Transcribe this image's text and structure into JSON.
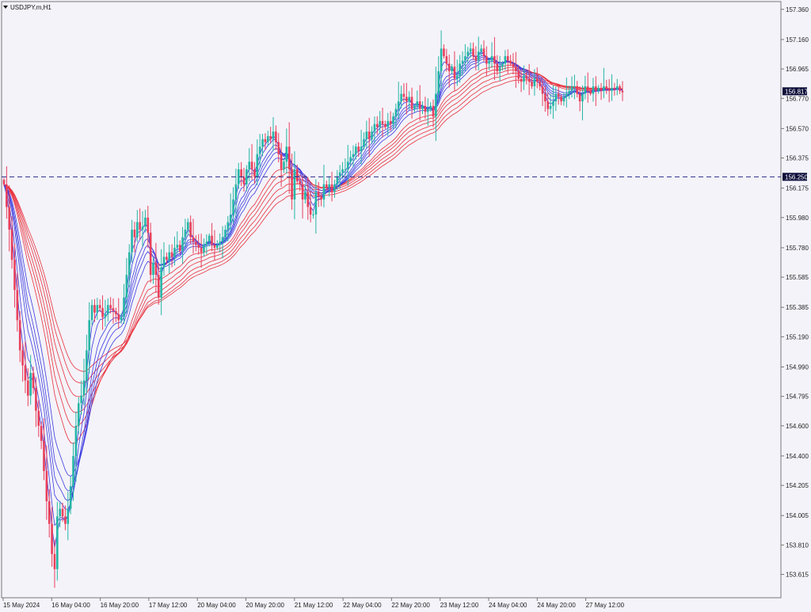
{
  "window": {
    "symbol_title": "USDJPY.m,H1",
    "menu_icon": "triangle-down-icon"
  },
  "chart_data": {
    "type": "candlestick",
    "title": "USDJPY.m,H1",
    "ylim": [
      153.56,
      157.38
    ],
    "y_ticks": [
      "157.360",
      "157.160",
      "156.965",
      "156.770",
      "156.570",
      "156.375",
      "156.175",
      "155.980",
      "155.780",
      "155.585",
      "155.385",
      "155.190",
      "154.990",
      "154.795",
      "154.600",
      "154.400",
      "154.205",
      "154.005",
      "153.810",
      "153.615"
    ],
    "x_ticks": [
      "15 May 2024",
      "16 May 04:00",
      "16 May 20:00",
      "17 May 12:00",
      "20 May 04:00",
      "20 May 20:00",
      "21 May 12:00",
      "22 May 04:00",
      "22 May 20:00",
      "23 May 12:00",
      "24 May 04:00",
      "24 May 20:00",
      "27 May 12:00"
    ],
    "current_price": "156.817",
    "horizontal_line": {
      "price": 156.25,
      "label": "156.250",
      "style": "dashed"
    },
    "colors": {
      "bull_candle": "#26b5a6",
      "bear_candle": "#e8405c",
      "fast_ma": "#3a3ae0",
      "slow_ma": "#e8303c",
      "price_tag": "#0c0c3a",
      "level_line": "#2a2a8a"
    },
    "candles_close": [
      156.2,
      156.05,
      155.9,
      155.7,
      155.5,
      155.3,
      155.1,
      155.0,
      154.9,
      154.8,
      154.95,
      154.85,
      154.7,
      154.6,
      154.5,
      154.3,
      154.1,
      153.95,
      153.75,
      153.65,
      154.0,
      154.05,
      154.0,
      153.95,
      154.05,
      154.2,
      154.4,
      154.6,
      154.75,
      154.8,
      154.9,
      155.1,
      155.3,
      155.4,
      155.35,
      155.4,
      155.38,
      155.32,
      155.34,
      155.4,
      155.38,
      155.36,
      155.34,
      155.3,
      155.32,
      155.45,
      155.6,
      155.75,
      155.9,
      155.85,
      155.95,
      155.9,
      155.92,
      155.98,
      155.88,
      155.6,
      155.68,
      155.6,
      155.45,
      155.65,
      155.72,
      155.7,
      155.75,
      155.72,
      155.78,
      155.8,
      155.76,
      155.85,
      155.9,
      155.95,
      155.85,
      155.82,
      155.8,
      155.78,
      155.75,
      155.8,
      155.82,
      155.86,
      155.8,
      155.78,
      155.8,
      155.82,
      155.85,
      155.9,
      155.95,
      156.0,
      156.1,
      156.2,
      156.3,
      156.25,
      156.2,
      156.3,
      156.35,
      156.3,
      156.25,
      156.4,
      156.45,
      156.5,
      156.48,
      156.52,
      156.5,
      156.55,
      156.48,
      156.4,
      156.3,
      156.35,
      156.45,
      156.3,
      156.1,
      156.3,
      156.22,
      156.2,
      156.1,
      156.15,
      156.05,
      156.0,
      156.0,
      156.15,
      156.12,
      156.1,
      156.2,
      156.18,
      156.2,
      156.15,
      156.2,
      156.25,
      156.28,
      156.3,
      156.3,
      156.35,
      156.38,
      156.4,
      156.45,
      156.42,
      156.45,
      156.5,
      156.55,
      156.5,
      156.55,
      156.6,
      156.58,
      156.62,
      156.6,
      156.58,
      156.62,
      156.6,
      156.65,
      156.7,
      156.75,
      156.8,
      156.78,
      156.75,
      156.78,
      156.7,
      156.72,
      156.75,
      156.7,
      156.72,
      156.68,
      156.7,
      156.72,
      156.65,
      156.8,
      156.95,
      157.1,
      157.05,
      157.0,
      156.95,
      156.98,
      156.9,
      156.92,
      157.0,
      157.02,
      157.05,
      157.08,
      157.1,
      157.05,
      157.02,
      157.08,
      157.1,
      157.05,
      157.0,
      157.02,
      157.05,
      157.0,
      156.95,
      156.98,
      157.0,
      157.05,
      157.02,
      157.0,
      156.98,
      156.95,
      156.9,
      156.88,
      156.92,
      156.9,
      156.88,
      156.85,
      156.9,
      156.88,
      156.85,
      156.8,
      156.75,
      156.7,
      156.72,
      156.75,
      156.8,
      156.78,
      156.75,
      156.78,
      156.8,
      156.82,
      156.85,
      156.85,
      156.8,
      156.75,
      156.8,
      156.85,
      156.82,
      156.8,
      156.85,
      156.82,
      156.84,
      156.82,
      156.85,
      156.83,
      156.82,
      156.84,
      156.83,
      156.85,
      156.82,
      156.81
    ]
  }
}
